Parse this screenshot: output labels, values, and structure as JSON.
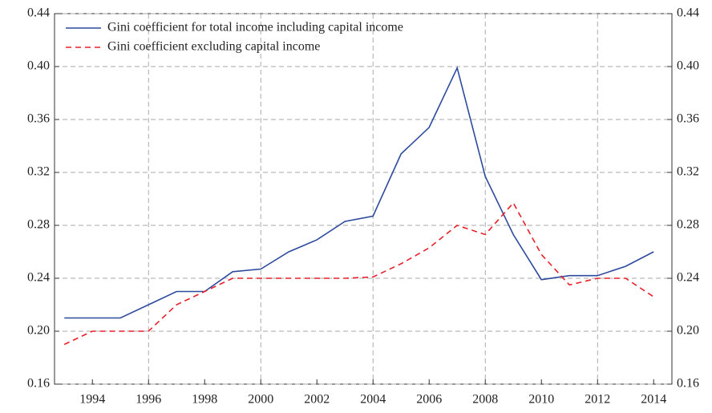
{
  "chart_data": {
    "type": "line",
    "x": [
      1993,
      1994,
      1995,
      1996,
      1997,
      1998,
      1999,
      2000,
      2001,
      2002,
      2003,
      2004,
      2005,
      2006,
      2007,
      2008,
      2009,
      2010,
      2011,
      2012,
      2013,
      2014
    ],
    "series": [
      {
        "name": "Gini coefficient for total income including capital income",
        "color": "#2e4a9e",
        "style": "solid",
        "values": [
          0.21,
          0.21,
          0.21,
          0.22,
          0.23,
          0.23,
          0.245,
          0.247,
          0.26,
          0.269,
          0.283,
          0.287,
          0.334,
          0.354,
          0.399,
          0.317,
          0.273,
          0.239,
          0.242,
          0.242,
          0.249,
          0.26
        ]
      },
      {
        "name": "Gini coefficient excluding capital income",
        "color": "#e8202a",
        "style": "dashed",
        "values": [
          0.19,
          0.2,
          0.2,
          0.2,
          0.22,
          0.23,
          0.24,
          0.24,
          0.24,
          0.24,
          0.24,
          0.241,
          0.251,
          0.263,
          0.28,
          0.273,
          0.297,
          0.258,
          0.235,
          0.24,
          0.24,
          0.226
        ]
      }
    ],
    "xlim": [
      1992.65,
      2014.65
    ],
    "xticks": [
      1994,
      1996,
      1998,
      2000,
      2002,
      2004,
      2006,
      2008,
      2010,
      2012,
      2014
    ],
    "ylim": [
      0.16,
      0.44
    ],
    "yticks": [
      {
        "value": 0.16,
        "label": "0.16"
      },
      {
        "value": 0.2,
        "label": "0.20"
      },
      {
        "value": 0.24,
        "label": "0.24"
      },
      {
        "value": 0.28,
        "label": "0.28"
      },
      {
        "value": 0.32,
        "label": "0.32"
      },
      {
        "value": 0.36,
        "label": "0.36"
      },
      {
        "value": 0.4,
        "label": "0.40"
      },
      {
        "value": 0.44,
        "label": "0.44"
      }
    ],
    "grid": true,
    "legend": "top-left"
  }
}
